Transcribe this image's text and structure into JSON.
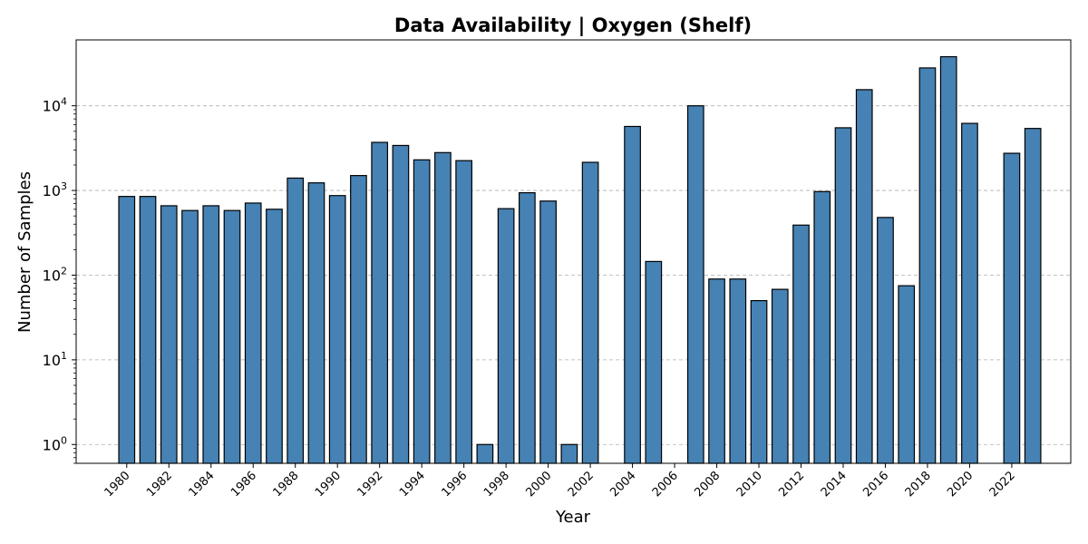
{
  "chart_data": {
    "type": "bar",
    "title": "Data Availability | Oxygen (Shelf)",
    "xlabel": "Year",
    "ylabel": "Number of Samples",
    "yscale": "log",
    "ylim": [
      0.6,
      60000
    ],
    "grid": "y-dashed",
    "bar_color": "#4682b4",
    "bar_edge_color": "#000000",
    "xtick_labels": [
      "1980",
      "1982",
      "1984",
      "1986",
      "1988",
      "1990",
      "1992",
      "1994",
      "1996",
      "1998",
      "2000",
      "2002",
      "2004",
      "2006",
      "2008",
      "2010",
      "2012",
      "2014",
      "2016",
      "2018",
      "2020",
      "2022"
    ],
    "ytick_labels": [
      {
        "base": "10",
        "exp": "0"
      },
      {
        "base": "10",
        "exp": "1"
      },
      {
        "base": "10",
        "exp": "2"
      },
      {
        "base": "10",
        "exp": "3"
      },
      {
        "base": "10",
        "exp": "4"
      }
    ],
    "x": [
      1980,
      1981,
      1982,
      1983,
      1984,
      1985,
      1986,
      1987,
      1988,
      1989,
      1990,
      1991,
      1992,
      1993,
      1994,
      1995,
      1996,
      1997,
      1998,
      1999,
      2000,
      2001,
      2002,
      2004,
      2005,
      2007,
      2008,
      2009,
      2010,
      2011,
      2012,
      2013,
      2014,
      2015,
      2016,
      2017,
      2018,
      2019,
      2020,
      2022,
      2023
    ],
    "values": [
      850,
      850,
      660,
      580,
      660,
      580,
      710,
      600,
      1400,
      1230,
      870,
      1500,
      3700,
      3400,
      2300,
      2800,
      2250,
      1,
      610,
      940,
      750,
      1,
      2150,
      5700,
      145,
      10000,
      90,
      90,
      50,
      68,
      390,
      970,
      5500,
      15500,
      480,
      75,
      28000,
      38000,
      6200,
      2750,
      5400
    ]
  }
}
